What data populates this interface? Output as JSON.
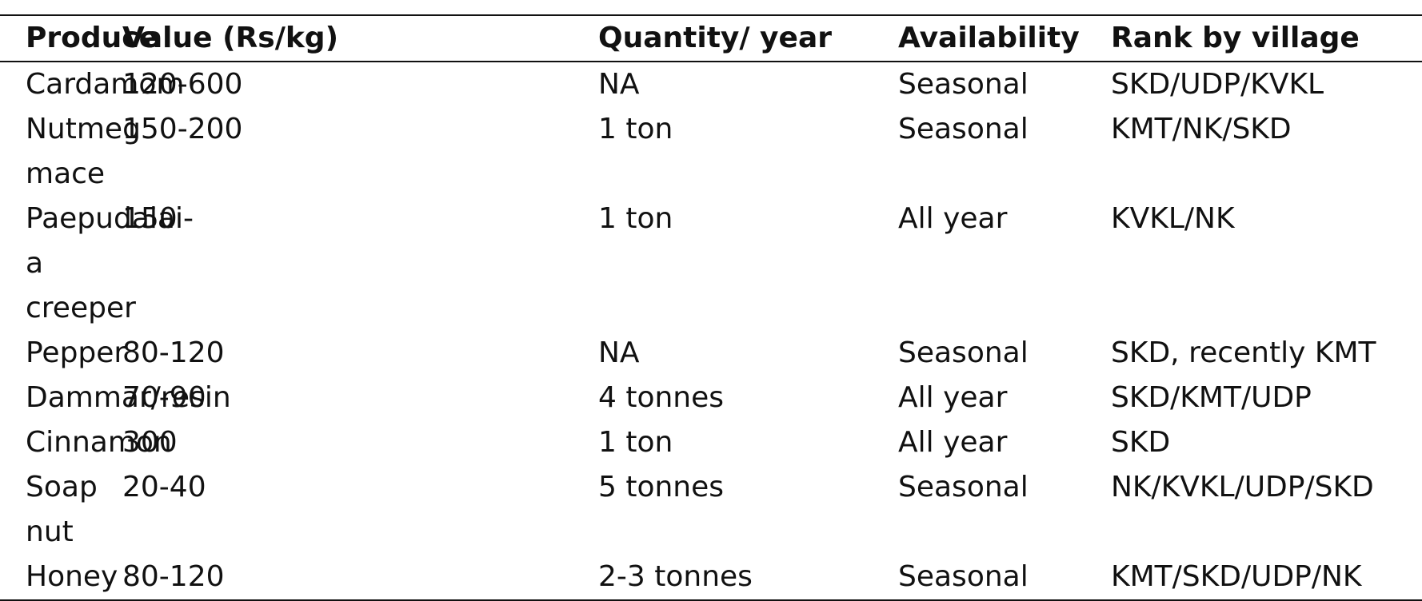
{
  "table": {
    "header": [
      "Produce",
      "Value (Rs/kg)",
      "Quantity/ year",
      "Availability",
      "Rank by village"
    ],
    "rows": [
      [
        "Cardamom",
        "120-600",
        "NA",
        "Seasonal",
        "SKD/UDP/KVKL"
      ],
      [
        "Nutmeg mace",
        "150-200",
        "1 ton",
        "Seasonal",
        "KMT/NK/SKD"
      ],
      [
        "Paepudalai- a creeper",
        "150",
        "1 ton",
        "All year",
        "KVKL/NK"
      ],
      [
        "Pepper",
        "80-120",
        "NA",
        "Seasonal",
        "SKD, recently KMT"
      ],
      [
        "Dammar/resin",
        "70-90",
        "4 tonnes",
        "All year",
        "SKD/KMT/UDP"
      ],
      [
        "Cinnamon",
        "300",
        "1 ton",
        "All year",
        "SKD"
      ],
      [
        "Soap nut",
        "20-40",
        "5 tonnes",
        "Seasonal",
        "NK/KVKL/UDP/SKD"
      ],
      [
        "Honey",
        "80-120",
        "2-3 tonnes",
        "Seasonal",
        "KMT/SKD/UDP/NK"
      ]
    ]
  }
}
